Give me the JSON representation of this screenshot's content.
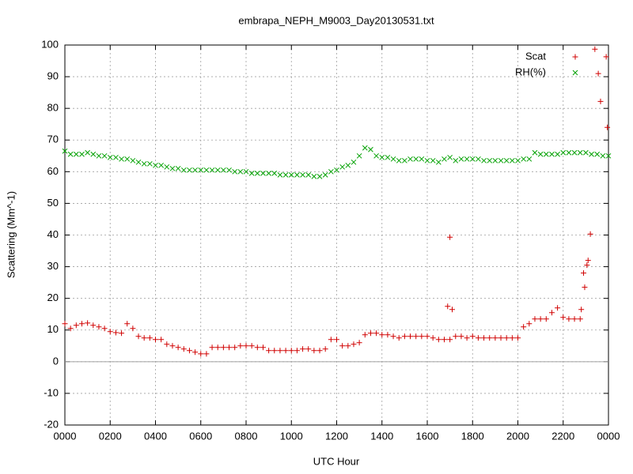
{
  "chart_data": {
    "type": "scatter",
    "title": "embrapa_NEPH_M9003_Day20130531.txt",
    "x_label": "UTC Hour",
    "y_label": "Scattering (Mm^-1)",
    "xlim": [
      0,
      24
    ],
    "ylim": [
      -20,
      100
    ],
    "xticks": [
      {
        "value": 0,
        "label": "0000"
      },
      {
        "value": 2,
        "label": "0200"
      },
      {
        "value": 4,
        "label": "0400"
      },
      {
        "value": 6,
        "label": "0600"
      },
      {
        "value": 8,
        "label": "0800"
      },
      {
        "value": 10,
        "label": "1000"
      },
      {
        "value": 12,
        "label": "1200"
      },
      {
        "value": 14,
        "label": "1400"
      },
      {
        "value": 16,
        "label": "1600"
      },
      {
        "value": 18,
        "label": "1800"
      },
      {
        "value": 20,
        "label": "2000"
      },
      {
        "value": 22,
        "label": "2200"
      },
      {
        "value": 24,
        "label": "0000"
      }
    ],
    "yticks": [
      -20,
      -10,
      0,
      10,
      20,
      30,
      40,
      50,
      60,
      70,
      80,
      90,
      100
    ],
    "grid": true,
    "legend": "top-right",
    "series": [
      {
        "name": "Scat",
        "color": "#d00000",
        "marker": "+",
        "x": [
          0,
          0.25,
          0.5,
          0.75,
          1,
          1.25,
          1.5,
          1.75,
          2,
          2.25,
          2.5,
          2.75,
          3,
          3.25,
          3.5,
          3.75,
          4,
          4.25,
          4.5,
          4.75,
          5,
          5.25,
          5.5,
          5.75,
          6,
          6.25,
          6.5,
          6.75,
          7,
          7.25,
          7.5,
          7.75,
          8,
          8.25,
          8.5,
          8.75,
          9,
          9.25,
          9.5,
          9.75,
          10,
          10.25,
          10.5,
          10.75,
          11,
          11.25,
          11.5,
          11.75,
          12,
          12.25,
          12.5,
          12.75,
          13,
          13.25,
          13.5,
          13.75,
          14,
          14.25,
          14.5,
          14.75,
          15,
          15.25,
          15.5,
          15.75,
          16,
          16.25,
          16.5,
          16.75,
          17,
          17.25,
          17.5,
          17.75,
          18,
          18.25,
          18.5,
          18.75,
          19,
          19.25,
          19.5,
          19.75,
          20,
          20.25,
          20.5,
          20.75,
          21,
          21.25,
          21.5,
          21.75,
          22,
          22.25,
          22.5,
          22.75,
          16.9,
          17.0,
          17.1,
          22.8,
          22.9,
          22.95,
          23.05,
          23.1,
          23.2,
          23.4,
          23.55,
          23.65,
          23.9,
          23.95
        ],
        "values": [
          12,
          10.5,
          11.5,
          12,
          12.2,
          11.5,
          11,
          10.5,
          9.5,
          9.2,
          9,
          12,
          10.5,
          8,
          7.5,
          7.5,
          7,
          7,
          5.5,
          5,
          4.5,
          4,
          3.5,
          3,
          2.5,
          2.5,
          4.5,
          4.5,
          4.5,
          4.5,
          4.5,
          5,
          5,
          5,
          4.5,
          4.5,
          3.5,
          3.5,
          3.5,
          3.5,
          3.5,
          3.5,
          4,
          4,
          3.5,
          3.5,
          4,
          7,
          7,
          5,
          5,
          5.5,
          6,
          8.5,
          9,
          9,
          8.5,
          8.5,
          8,
          7.5,
          8,
          8,
          8,
          8,
          8,
          7.5,
          7,
          7,
          7,
          8,
          8,
          7.5,
          8,
          7.5,
          7.5,
          7.5,
          7.5,
          7.5,
          7.5,
          7.5,
          7.5,
          11,
          12,
          13.5,
          13.5,
          13.5,
          15.5,
          17,
          14,
          13.5,
          13.5,
          13.5,
          17.5,
          39.3,
          16.5,
          16.5,
          28,
          23.5,
          30.5,
          32,
          40.3,
          98.7,
          91,
          82.2,
          96.3,
          74
        ]
      },
      {
        "name": "RH(%)",
        "color": "#00a000",
        "marker": "x",
        "x": [
          0,
          0.25,
          0.5,
          0.75,
          1,
          1.25,
          1.5,
          1.75,
          2,
          2.25,
          2.5,
          2.75,
          3,
          3.25,
          3.5,
          3.75,
          4,
          4.25,
          4.5,
          4.75,
          5,
          5.25,
          5.5,
          5.75,
          6,
          6.25,
          6.5,
          6.75,
          7,
          7.25,
          7.5,
          7.75,
          8,
          8.25,
          8.5,
          8.75,
          9,
          9.25,
          9.5,
          9.75,
          10,
          10.25,
          10.5,
          10.75,
          11,
          11.25,
          11.5,
          11.75,
          12,
          12.25,
          12.5,
          12.75,
          13,
          13.25,
          13.5,
          13.75,
          14,
          14.25,
          14.5,
          14.75,
          15,
          15.25,
          15.5,
          15.75,
          16,
          16.25,
          16.5,
          16.75,
          17,
          17.25,
          17.5,
          17.75,
          18,
          18.25,
          18.5,
          18.75,
          19,
          19.25,
          19.5,
          19.75,
          20,
          20.25,
          20.5,
          20.75,
          21,
          21.25,
          21.5,
          21.75,
          22,
          22.25,
          22.5,
          22.75,
          23,
          23.25,
          23.5,
          23.75,
          24
        ],
        "values": [
          66.5,
          65.5,
          65.5,
          65.5,
          66,
          65.5,
          65,
          65,
          64.5,
          64.5,
          64,
          64,
          63.5,
          63,
          62.5,
          62.5,
          62,
          62,
          61.5,
          61,
          61,
          60.5,
          60.5,
          60.5,
          60.5,
          60.5,
          60.5,
          60.5,
          60.5,
          60.5,
          60,
          60,
          60,
          59.5,
          59.5,
          59.5,
          59.5,
          59.5,
          59,
          59,
          59,
          59,
          59,
          59,
          58.5,
          58.5,
          59,
          60,
          60.5,
          61.5,
          62,
          63,
          65,
          67.5,
          67,
          65,
          64.5,
          64.5,
          64,
          63.5,
          63.5,
          64,
          64,
          64,
          63.5,
          63.5,
          63,
          64,
          64.5,
          63.5,
          64,
          64,
          64,
          64,
          63.5,
          63.5,
          63.5,
          63.5,
          63.5,
          63.5,
          63.5,
          64,
          64,
          66,
          65.5,
          65.5,
          65.5,
          65.5,
          66,
          66,
          66,
          66,
          66,
          65.5,
          65.5,
          65,
          65
        ]
      }
    ]
  }
}
